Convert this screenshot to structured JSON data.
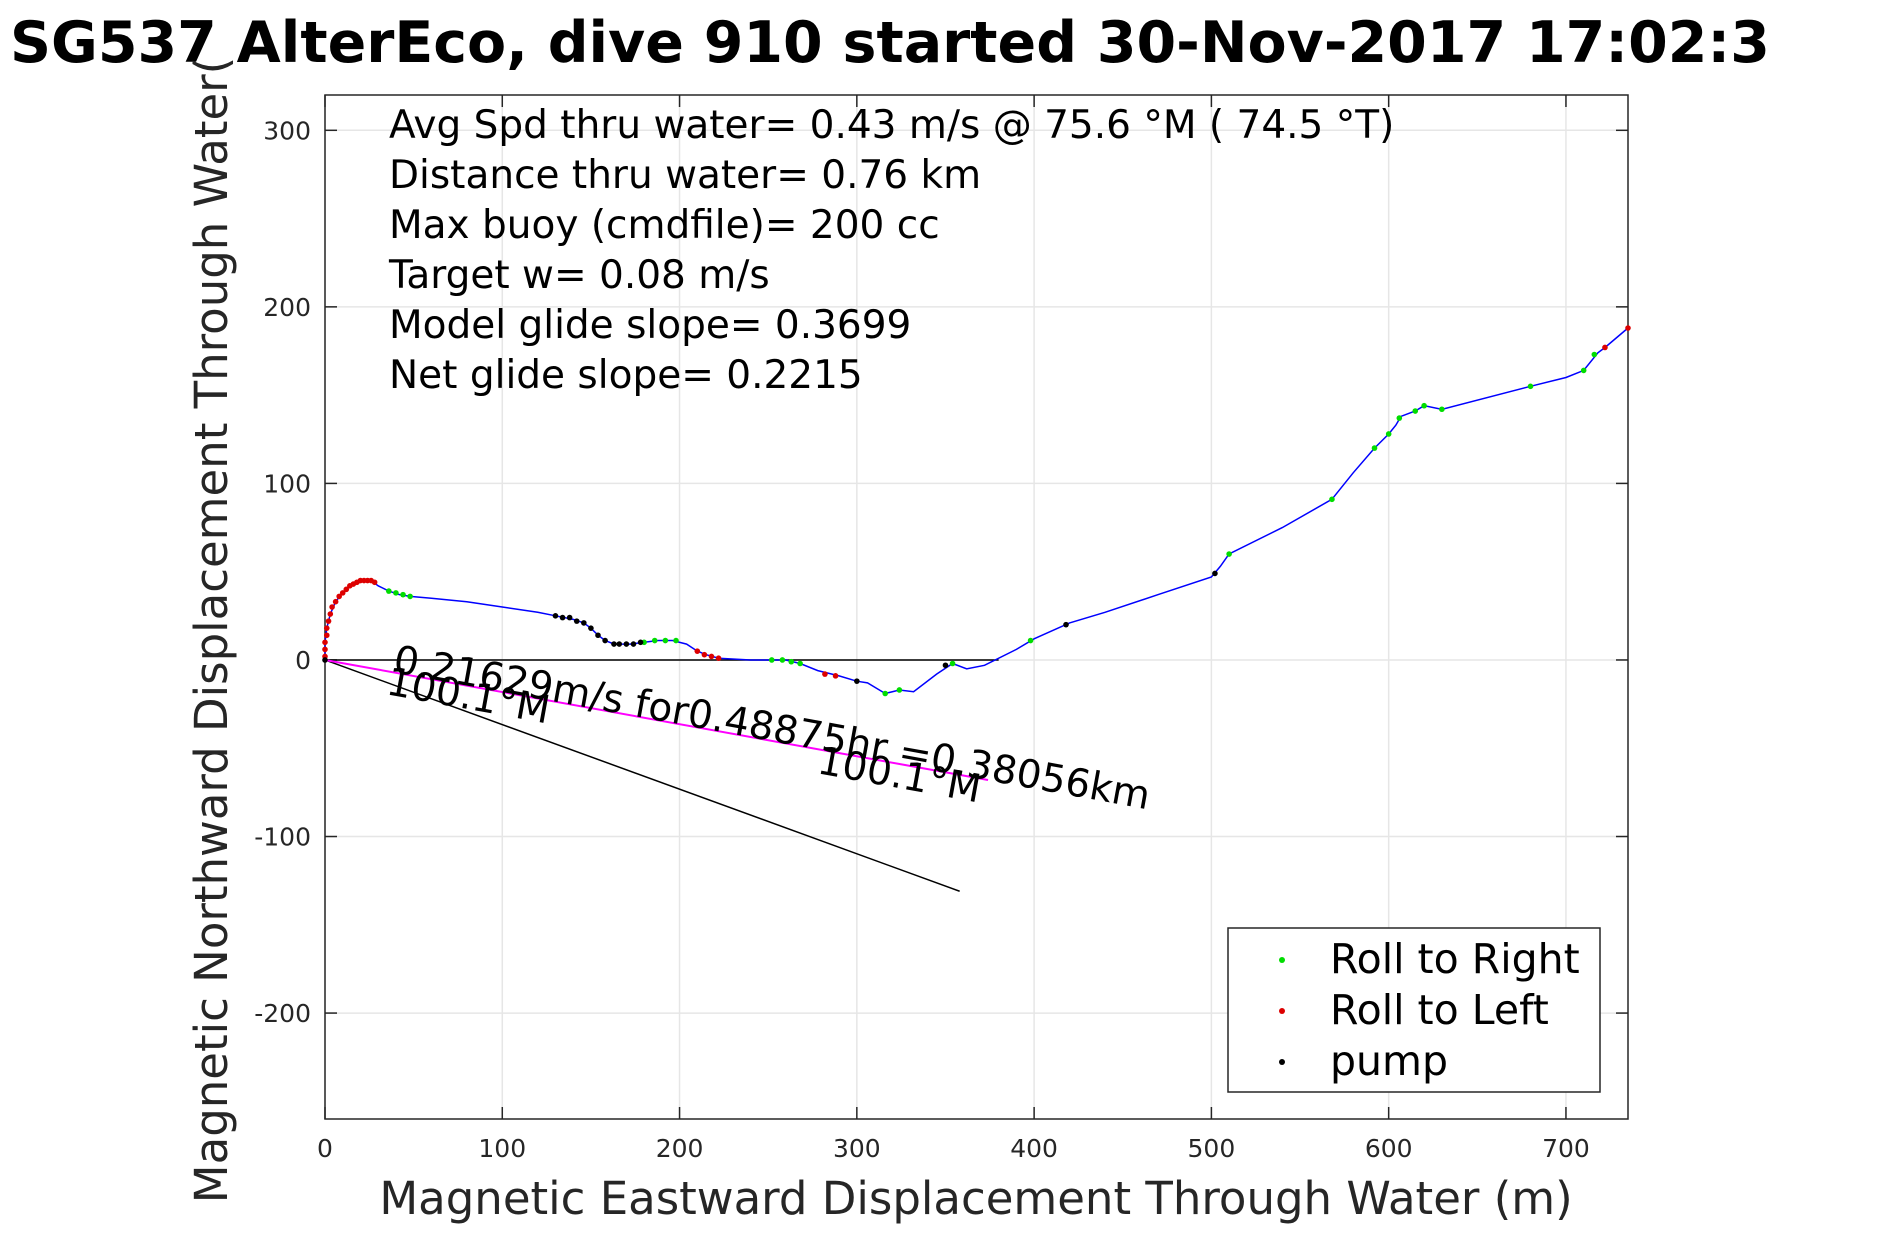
{
  "chart_data": {
    "type": "line",
    "title": "SG537 AlterEco, dive 910 started 30-Nov-2017 17:02:3",
    "xlabel": "Magnetic Eastward Displacement Through Water (m)",
    "ylabel": "Magnetic Northward Displacement Through Water(",
    "xlim": [
      0,
      735
    ],
    "ylim": [
      -260,
      320
    ],
    "xticks": [
      0,
      100,
      200,
      300,
      400,
      500,
      600,
      700
    ],
    "yticks": [
      -200,
      -100,
      0,
      100,
      200,
      300
    ],
    "grid": true,
    "legend_position": "bottom-right",
    "annotations": [
      "Avg Spd thru water=  0.43 m/s @  75.6 °M ( 74.5 °T)",
      "Distance thru water=  0.76 km",
      "Max buoy (cmdfile)= 200 cc",
      "Target w= 0.08 m/s",
      "Model glide slope= 0.3699",
      "Net glide slope= 0.2215"
    ],
    "current_label": "0.21629m/s for0.48875hr =0.38056km",
    "heading_label_1": "100.1°M",
    "heading_label_2": "100.1°M",
    "track": {
      "name": "track",
      "color": "#0000ff",
      "points": [
        [
          0,
          0
        ],
        [
          0,
          10
        ],
        [
          1,
          18
        ],
        [
          3,
          26
        ],
        [
          6,
          33
        ],
        [
          10,
          38
        ],
        [
          14,
          42
        ],
        [
          18,
          44
        ],
        [
          22,
          45
        ],
        [
          26,
          45
        ],
        [
          30,
          42
        ],
        [
          36,
          39
        ],
        [
          42,
          37
        ],
        [
          48,
          36
        ],
        [
          60,
          35
        ],
        [
          80,
          33
        ],
        [
          100,
          30
        ],
        [
          120,
          27
        ],
        [
          130,
          25
        ],
        [
          140,
          23
        ],
        [
          146,
          21
        ],
        [
          150,
          18
        ],
        [
          154,
          14
        ],
        [
          158,
          11
        ],
        [
          163,
          9
        ],
        [
          172,
          9
        ],
        [
          180,
          10
        ],
        [
          188,
          11
        ],
        [
          196,
          11
        ],
        [
          204,
          9
        ],
        [
          210,
          5
        ],
        [
          215,
          3
        ],
        [
          222,
          1
        ],
        [
          240,
          0
        ],
        [
          260,
          0
        ],
        [
          268,
          -2
        ],
        [
          278,
          -6
        ],
        [
          290,
          -9
        ],
        [
          300,
          -12
        ],
        [
          306,
          -13
        ],
        [
          316,
          -19
        ],
        [
          324,
          -17
        ],
        [
          332,
          -18
        ],
        [
          345,
          -8
        ],
        [
          354,
          -2
        ],
        [
          362,
          -5
        ],
        [
          372,
          -3
        ],
        [
          390,
          6
        ],
        [
          400,
          12
        ],
        [
          420,
          21
        ],
        [
          440,
          27
        ],
        [
          470,
          37
        ],
        [
          500,
          47
        ],
        [
          505,
          53
        ],
        [
          510,
          60
        ],
        [
          540,
          75
        ],
        [
          568,
          91
        ],
        [
          580,
          106
        ],
        [
          592,
          120
        ],
        [
          600,
          128
        ],
        [
          604,
          133
        ],
        [
          607,
          138
        ],
        [
          615,
          141
        ],
        [
          620,
          144
        ],
        [
          630,
          142
        ],
        [
          680,
          155
        ],
        [
          700,
          160
        ],
        [
          710,
          164
        ],
        [
          718,
          174
        ],
        [
          722,
          177
        ],
        [
          735,
          188
        ]
      ]
    },
    "roll_right": {
      "name": "Roll to Right",
      "color": "#00dd00",
      "points": [
        [
          36,
          39
        ],
        [
          40,
          38
        ],
        [
          44,
          37
        ],
        [
          48,
          36
        ],
        [
          180,
          10
        ],
        [
          186,
          11
        ],
        [
          192,
          11
        ],
        [
          198,
          11
        ],
        [
          252,
          0
        ],
        [
          258,
          0
        ],
        [
          263,
          -1
        ],
        [
          268,
          -2
        ],
        [
          316,
          -19
        ],
        [
          324,
          -17
        ],
        [
          354,
          -2
        ],
        [
          398,
          11
        ],
        [
          510,
          60
        ],
        [
          568,
          91
        ],
        [
          592,
          120
        ],
        [
          600,
          128
        ],
        [
          606,
          137
        ],
        [
          615,
          141
        ],
        [
          620,
          144
        ],
        [
          630,
          142
        ],
        [
          680,
          155
        ],
        [
          710,
          164
        ],
        [
          716,
          173
        ]
      ]
    },
    "roll_left": {
      "name": "Roll to Left",
      "color": "#dd0000",
      "points": [
        [
          0,
          2
        ],
        [
          0,
          6
        ],
        [
          0,
          10
        ],
        [
          1,
          14
        ],
        [
          1,
          18
        ],
        [
          2,
          22
        ],
        [
          3,
          26
        ],
        [
          4,
          30
        ],
        [
          6,
          33
        ],
        [
          8,
          36
        ],
        [
          10,
          38
        ],
        [
          12,
          40
        ],
        [
          14,
          42
        ],
        [
          16,
          43
        ],
        [
          18,
          44
        ],
        [
          20,
          45
        ],
        [
          22,
          45
        ],
        [
          24,
          45
        ],
        [
          26,
          45
        ],
        [
          28,
          44
        ],
        [
          210,
          5
        ],
        [
          214,
          3
        ],
        [
          218,
          2
        ],
        [
          222,
          1
        ],
        [
          282,
          -8
        ],
        [
          288,
          -9
        ],
        [
          722,
          177
        ],
        [
          735,
          188
        ]
      ]
    },
    "pump": {
      "name": "pump",
      "color": "#000000",
      "points": [
        [
          0,
          0
        ],
        [
          130,
          25
        ],
        [
          134,
          24
        ],
        [
          138,
          24
        ],
        [
          142,
          22
        ],
        [
          146,
          21
        ],
        [
          150,
          18
        ],
        [
          154,
          14
        ],
        [
          158,
          11
        ],
        [
          163,
          9
        ],
        [
          166,
          9
        ],
        [
          170,
          9
        ],
        [
          174,
          9
        ],
        [
          178,
          10
        ],
        [
          300,
          -12
        ],
        [
          350,
          -3
        ],
        [
          502,
          49
        ],
        [
          418,
          20
        ]
      ]
    },
    "heading_line": {
      "x": [
        0,
        358
      ],
      "y": [
        0,
        -131
      ]
    },
    "current_line": {
      "x": [
        0,
        374
      ],
      "y": [
        0,
        -68
      ]
    },
    "zero_line": {
      "x": [
        0,
        380
      ],
      "y": [
        0,
        0
      ]
    }
  }
}
